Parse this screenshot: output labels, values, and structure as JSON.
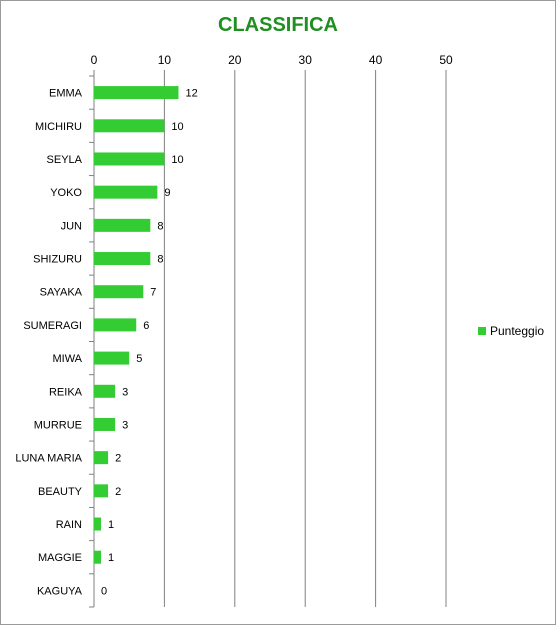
{
  "chart_data": {
    "type": "bar",
    "orientation": "horizontal",
    "title": "CLASSIFICA",
    "categories": [
      "EMMA",
      "MICHIRU",
      "SEYLA",
      "YOKO",
      "JUN",
      "SHIZURU",
      "SAYAKA",
      "SUMERAGI",
      "MIWA",
      "REIKA",
      "MURRUE",
      "LUNA MARIA",
      "BEAUTY",
      "RAIN",
      "MAGGIE",
      "KAGUYA"
    ],
    "series": [
      {
        "name": "Punteggio",
        "values": [
          12,
          10,
          10,
          9,
          8,
          8,
          7,
          6,
          5,
          3,
          3,
          2,
          2,
          1,
          1,
          0
        ]
      }
    ],
    "xlim": [
      0,
      50
    ],
    "xticks": [
      "0",
      "10",
      "20",
      "30",
      "40",
      "50"
    ],
    "xaxis_position": "top",
    "grid": true,
    "data_labels": true,
    "legend_position": "right",
    "colors": {
      "bar": "#33cc33",
      "title": "#1f8f1f",
      "grid": "#808080"
    }
  }
}
